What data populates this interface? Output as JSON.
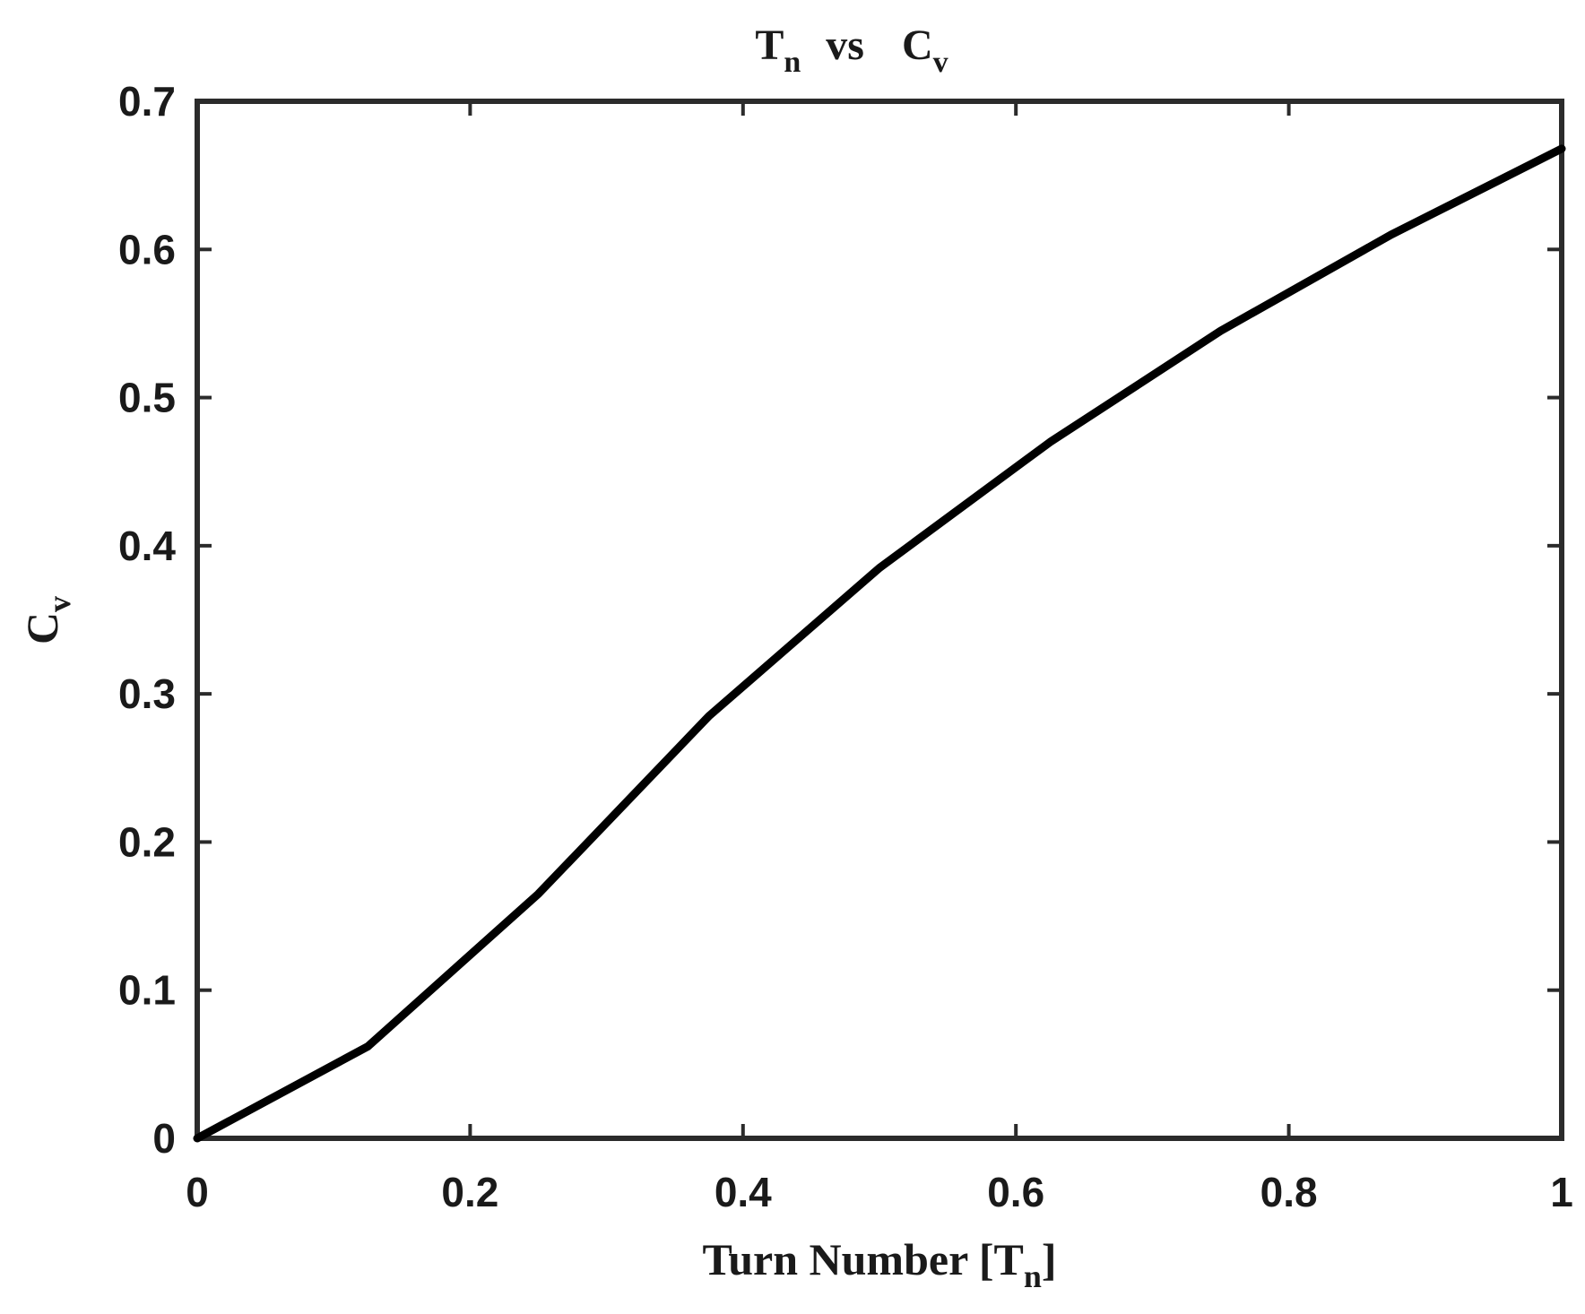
{
  "chart_data": {
    "type": "line",
    "title": {
      "main_1": "T",
      "sub_1": "n",
      "middle": "vs",
      "main_2": "C",
      "sub_2": "v"
    },
    "xlabel": {
      "main": "Turn Number [T",
      "sub": "n",
      "end": "]"
    },
    "ylabel": {
      "main": "C",
      "sub": "v"
    },
    "xlim": [
      0,
      1
    ],
    "ylim": [
      0,
      0.7
    ],
    "xticks": [
      {
        "value": 0,
        "label": "0"
      },
      {
        "value": 0.2,
        "label": "0.2"
      },
      {
        "value": 0.4,
        "label": "0.4"
      },
      {
        "value": 0.6,
        "label": "0.6"
      },
      {
        "value": 0.8,
        "label": "0.8"
      },
      {
        "value": 1,
        "label": "1"
      }
    ],
    "yticks": [
      {
        "value": 0,
        "label": "0"
      },
      {
        "value": 0.1,
        "label": "0.1"
      },
      {
        "value": 0.2,
        "label": "0.2"
      },
      {
        "value": 0.3,
        "label": "0.3"
      },
      {
        "value": 0.4,
        "label": "0.4"
      },
      {
        "value": 0.5,
        "label": "0.5"
      },
      {
        "value": 0.6,
        "label": "0.6"
      },
      {
        "value": 0.7,
        "label": "0.7"
      }
    ],
    "grid": false,
    "legend": "none",
    "series": [
      {
        "color": "#000000",
        "x": [
          0,
          0.125,
          0.25,
          0.375,
          0.5,
          0.625,
          0.75,
          0.875,
          1.0
        ],
        "y": [
          0,
          0.062,
          0.165,
          0.285,
          0.385,
          0.47,
          0.545,
          0.61,
          0.668
        ]
      }
    ]
  }
}
